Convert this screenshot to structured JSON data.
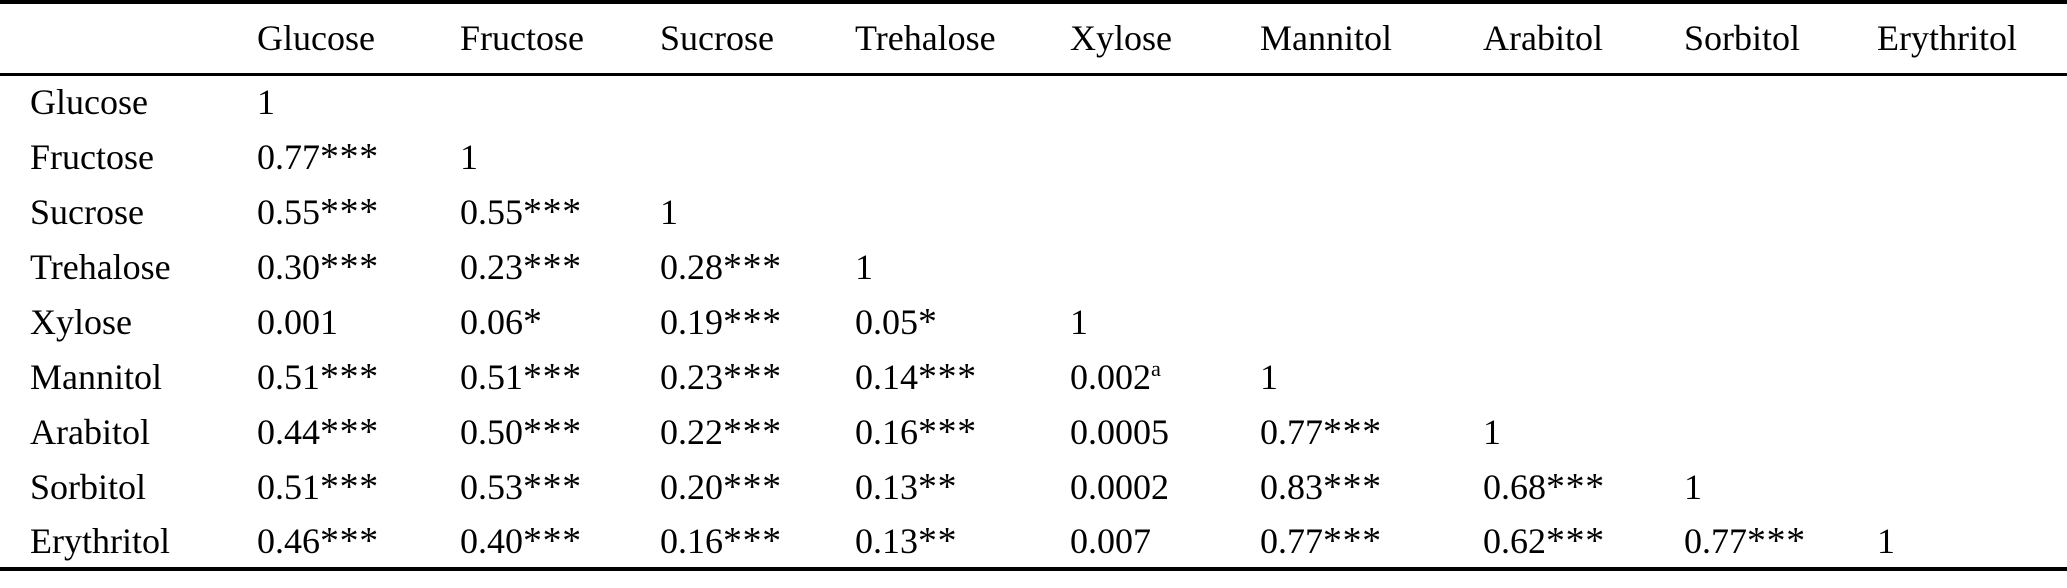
{
  "table": {
    "kind": "correlation-matrix",
    "corner_label": "",
    "columns": [
      "Glucose",
      "Fructose",
      "Sucrose",
      "Trehalose",
      "Xylose",
      "Mannitol",
      "Arabitol",
      "Sorbitol",
      "Erythritol"
    ],
    "rows": [
      {
        "label": "Glucose",
        "cells": [
          "1",
          "",
          "",
          "",
          "",
          "",
          "",
          "",
          ""
        ]
      },
      {
        "label": "Fructose",
        "cells": [
          "0.77***",
          "1",
          "",
          "",
          "",
          "",
          "",
          "",
          ""
        ]
      },
      {
        "label": "Sucrose",
        "cells": [
          "0.55***",
          "0.55***",
          "1",
          "",
          "",
          "",
          "",
          "",
          ""
        ]
      },
      {
        "label": "Trehalose",
        "cells": [
          "0.30***",
          "0.23***",
          "0.28***",
          "1",
          "",
          "",
          "",
          "",
          ""
        ]
      },
      {
        "label": "Xylose",
        "cells": [
          "0.001",
          "0.06*",
          "0.19***",
          "0.05*",
          "1",
          "",
          "",
          "",
          ""
        ]
      },
      {
        "label": "Mannitol",
        "cells": [
          "0.51***",
          "0.51***",
          "0.23***",
          "0.14***",
          {
            "text": "0.002",
            "sup": "a"
          },
          "1",
          "",
          "",
          ""
        ]
      },
      {
        "label": "Arabitol",
        "cells": [
          "0.44***",
          "0.50***",
          "0.22***",
          "0.16***",
          "0.0005",
          "0.77***",
          "1",
          "",
          ""
        ]
      },
      {
        "label": "Sorbitol",
        "cells": [
          "0.51***",
          "0.53***",
          "0.20***",
          "0.13**",
          "0.0002",
          "0.83***",
          "0.68***",
          "1",
          ""
        ]
      },
      {
        "label": "Erythritol",
        "cells": [
          "0.46***",
          "0.40***",
          "0.16***",
          "0.13**",
          "0.007",
          "0.77***",
          "0.62***",
          "0.77***",
          "1"
        ]
      }
    ],
    "text_color": "#000000",
    "rule_color": "#000000",
    "background_color": "#ffffff"
  }
}
